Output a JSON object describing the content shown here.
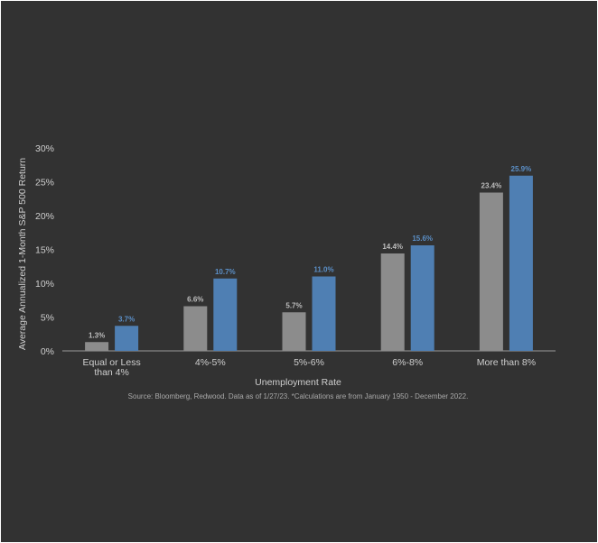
{
  "chart_data": {
    "type": "bar",
    "categories": [
      [
        "Equal or Less",
        "than 4%"
      ],
      [
        "4%-5%"
      ],
      [
        "5%-6%"
      ],
      [
        "6%-8%"
      ],
      [
        "More than 8%"
      ]
    ],
    "series": [
      {
        "values": [
          1.3,
          6.6,
          5.7,
          14.4,
          23.4
        ],
        "labels": [
          "1.3%",
          "6.6%",
          "5.7%",
          "14.4%",
          "23.4%"
        ],
        "color": "#8c8c8c",
        "label_color": "#bdbdbd"
      },
      {
        "values": [
          3.7,
          10.7,
          11.0,
          15.6,
          25.9
        ],
        "labels": [
          "3.7%",
          "10.7%",
          "11.0%",
          "15.6%",
          "25.9%"
        ],
        "color": "#4f7fb3",
        "label_color": "#5b8fc7"
      }
    ],
    "ylim": [
      0,
      30
    ],
    "yticks": [
      0,
      5,
      10,
      15,
      20,
      25,
      30
    ],
    "ytick_labels": [
      "0%",
      "5%",
      "10%",
      "15%",
      "20%",
      "25%",
      "30%"
    ],
    "xlabel": "Unemployment Rate",
    "ylabel": "Average Annualized 1-Month S&P 500 Return",
    "grid": false,
    "source": "Source: Bloomberg, Redwood. Data as of 1/27/23. *Calculations are from January 1950 - December 2022.",
    "colors": {
      "background": "#323232",
      "text": "#cfcfcf",
      "axis": "#9a9a9a"
    }
  }
}
